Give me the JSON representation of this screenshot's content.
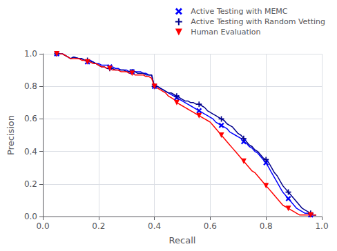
{
  "chart_data": {
    "type": "line",
    "xlabel": "Recall",
    "ylabel": "Precision",
    "xlim": [
      0.0,
      1.0
    ],
    "ylim": [
      0.0,
      1.0
    ],
    "xticks": [
      {
        "value": 0,
        "label": "0.0"
      },
      0.2,
      0.4,
      0.6,
      0.8,
      {
        "value": 1,
        "label": "1.0"
      }
    ],
    "yticks": [
      {
        "value": 0,
        "label": "0.0"
      },
      0.2,
      0.4,
      0.6,
      0.8,
      {
        "value": 1,
        "label": "1.0"
      }
    ],
    "grid": true,
    "legend": "upper right",
    "x": [
      0.05,
      0.07,
      0.09,
      0.1,
      0.11,
      0.13,
      0.14,
      0.15,
      0.16,
      0.17,
      0.18,
      0.19,
      0.2,
      0.21,
      0.22,
      0.23,
      0.24,
      0.25,
      0.26,
      0.27,
      0.28,
      0.29,
      0.3,
      0.31,
      0.32,
      0.33,
      0.34,
      0.35,
      0.36,
      0.37,
      0.38,
      0.39,
      0.4,
      0.41,
      0.42,
      0.43,
      0.44,
      0.45,
      0.46,
      0.47,
      0.48,
      0.49,
      0.5,
      0.51,
      0.52,
      0.53,
      0.54,
      0.55,
      0.56,
      0.57,
      0.58,
      0.59,
      0.6,
      0.61,
      0.62,
      0.63,
      0.64,
      0.65,
      0.66,
      0.67,
      0.68,
      0.69,
      0.7,
      0.71,
      0.72,
      0.73,
      0.74,
      0.75,
      0.76,
      0.77,
      0.78,
      0.79,
      0.8,
      0.81,
      0.82,
      0.83,
      0.84,
      0.85,
      0.86,
      0.87,
      0.88,
      0.89,
      0.9,
      0.91,
      0.92,
      0.93,
      0.94,
      0.95,
      0.96,
      0.97,
      0.98
    ],
    "series": [
      {
        "name": "Active Testing with MEMC",
        "color": "#0000FF",
        "marker": "x",
        "values": [
          1.0,
          1.0,
          0.98,
          0.97,
          0.98,
          0.97,
          0.97,
          0.96,
          0.95,
          0.96,
          0.95,
          0.94,
          0.94,
          0.93,
          0.93,
          0.93,
          0.92,
          0.92,
          0.91,
          0.91,
          0.9,
          0.9,
          0.9,
          0.89,
          0.89,
          0.89,
          0.89,
          0.89,
          0.88,
          0.88,
          0.87,
          0.87,
          0.8,
          0.8,
          0.79,
          0.78,
          0.77,
          0.76,
          0.75,
          0.74,
          0.73,
          0.72,
          0.71,
          0.7,
          0.69,
          0.68,
          0.67,
          0.66,
          0.65,
          0.64,
          0.63,
          0.62,
          0.61,
          0.6,
          0.58,
          0.57,
          0.56,
          0.55,
          0.54,
          0.52,
          0.51,
          0.5,
          0.49,
          0.48,
          0.46,
          0.45,
          0.43,
          0.42,
          0.4,
          0.39,
          0.37,
          0.35,
          0.33,
          0.3,
          0.27,
          0.24,
          0.21,
          0.18,
          0.15,
          0.13,
          0.11,
          0.09,
          0.07,
          0.05,
          0.04,
          0.03,
          0.02,
          0.02,
          0.01,
          0.01,
          0.01
        ]
      },
      {
        "name": "Active Testing with Random Vetting",
        "color": "#00008B",
        "marker": "plus",
        "values": [
          1.0,
          1.0,
          0.98,
          0.97,
          0.98,
          0.97,
          0.97,
          0.96,
          0.96,
          0.95,
          0.95,
          0.94,
          0.93,
          0.92,
          0.92,
          0.91,
          0.91,
          0.91,
          0.9,
          0.9,
          0.9,
          0.9,
          0.89,
          0.89,
          0.89,
          0.89,
          0.88,
          0.88,
          0.88,
          0.87,
          0.87,
          0.87,
          0.8,
          0.8,
          0.79,
          0.78,
          0.77,
          0.76,
          0.76,
          0.75,
          0.74,
          0.73,
          0.72,
          0.71,
          0.71,
          0.7,
          0.7,
          0.69,
          0.69,
          0.68,
          0.67,
          0.65,
          0.64,
          0.63,
          0.62,
          0.61,
          0.6,
          0.59,
          0.57,
          0.56,
          0.55,
          0.53,
          0.51,
          0.5,
          0.48,
          0.46,
          0.44,
          0.43,
          0.41,
          0.4,
          0.38,
          0.36,
          0.35,
          0.33,
          0.3,
          0.27,
          0.25,
          0.22,
          0.19,
          0.17,
          0.15,
          0.13,
          0.11,
          0.09,
          0.07,
          0.05,
          0.04,
          0.03,
          0.02,
          0.01,
          0.01
        ]
      },
      {
        "name": "Human Evaluation",
        "color": "#FF0000",
        "marker": "triangle_down",
        "values": [
          1.0,
          1.0,
          0.98,
          0.97,
          0.97,
          0.97,
          0.96,
          0.96,
          0.95,
          0.95,
          0.94,
          0.94,
          0.93,
          0.92,
          0.92,
          0.91,
          0.91,
          0.9,
          0.9,
          0.9,
          0.89,
          0.89,
          0.89,
          0.88,
          0.88,
          0.87,
          0.87,
          0.87,
          0.87,
          0.86,
          0.86,
          0.85,
          0.8,
          0.79,
          0.78,
          0.77,
          0.76,
          0.74,
          0.73,
          0.72,
          0.7,
          0.69,
          0.68,
          0.67,
          0.66,
          0.65,
          0.64,
          0.63,
          0.62,
          0.61,
          0.6,
          0.59,
          0.58,
          0.56,
          0.54,
          0.52,
          0.5,
          0.48,
          0.46,
          0.44,
          0.42,
          0.4,
          0.38,
          0.36,
          0.34,
          0.32,
          0.3,
          0.28,
          0.27,
          0.25,
          0.23,
          0.21,
          0.19,
          0.17,
          0.15,
          0.13,
          0.11,
          0.09,
          0.07,
          0.06,
          0.05,
          0.04,
          0.03,
          0.02,
          0.01,
          0.01,
          0.01,
          0.01,
          0.01,
          0.01,
          0.01
        ]
      }
    ]
  }
}
